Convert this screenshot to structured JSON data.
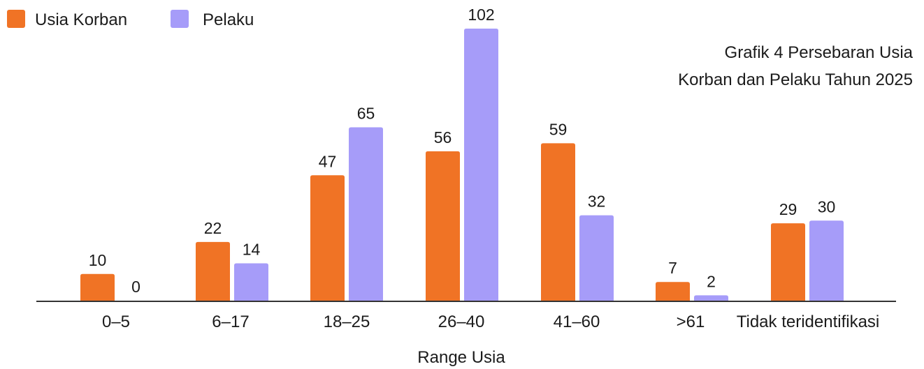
{
  "chart_data": {
    "type": "bar",
    "title_lines": [
      "Grafik 4 Persebaran Usia",
      "Korban dan Pelaku Tahun 2025"
    ],
    "xlabel": "Range Usia",
    "ylabel": "",
    "categories": [
      "0–5",
      "6–17",
      "18–25",
      "26–40",
      "41–60",
      ">61",
      "Tidak teridentifikasi"
    ],
    "series": [
      {
        "name": "Usia Korban",
        "color": "#f07325",
        "values": [
          10,
          22,
          47,
          56,
          59,
          7,
          29
        ]
      },
      {
        "name": "Pelaku",
        "color": "#a69cf9",
        "values": [
          0,
          14,
          65,
          102,
          32,
          2,
          30
        ]
      }
    ],
    "ylim": [
      0,
      102
    ],
    "grid": false,
    "legend": "top-left",
    "data_labels": true
  }
}
